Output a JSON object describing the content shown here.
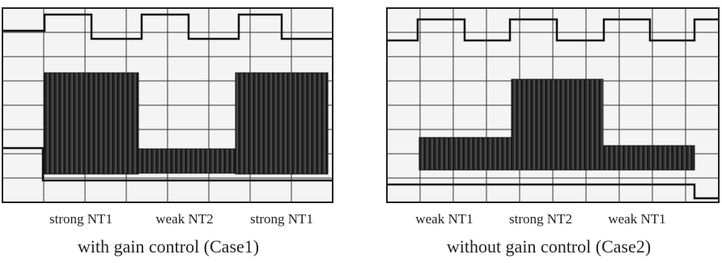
{
  "panels": [
    {
      "labels": [
        "strong NT1",
        "weak NT2",
        "strong NT1"
      ],
      "caption": "with gain control (Case1)"
    },
    {
      "labels": [
        "weak NT1",
        "strong NT2",
        "weak NT1"
      ],
      "caption": "without gain control (Case2)"
    }
  ]
}
